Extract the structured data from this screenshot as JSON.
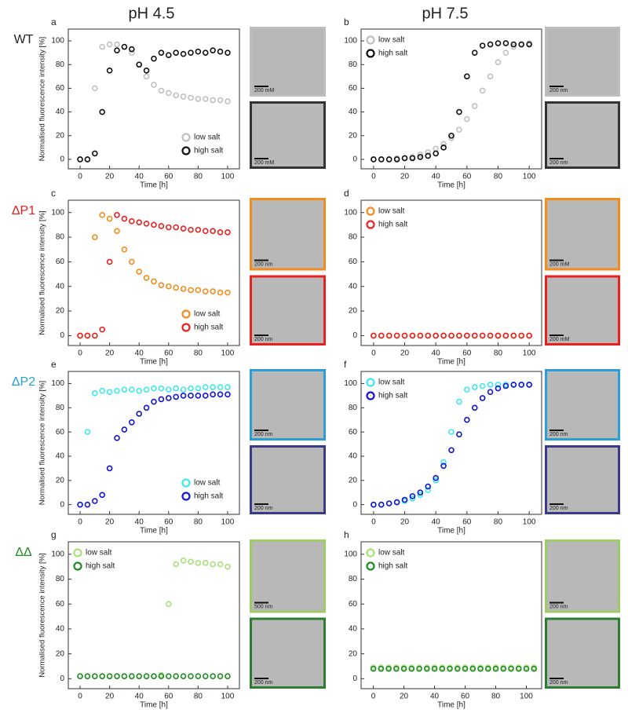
{
  "columns": [
    "pH 4.5",
    "pH 7.5"
  ],
  "rows": [
    {
      "text": "WT",
      "color": "#222222"
    },
    {
      "text": "ΔP1",
      "color": "#e8211f"
    },
    {
      "text": "ΔP2",
      "color": "#2a9fd6"
    },
    {
      "text": "ΔΔ",
      "color": "#1e8c24"
    }
  ],
  "micrographs": [
    [
      {
        "label": "200 mM",
        "border": "#bdbdbd"
      },
      {
        "label": "200 mM",
        "border": "#333333"
      },
      {
        "label": "200 nm",
        "border": "#bdbdbd"
      },
      {
        "label": "200 nm",
        "border": "#333333"
      }
    ],
    [
      {
        "label": "200 nm",
        "border": "#f28c1c"
      },
      {
        "label": "200 nm",
        "border": "#e8211f"
      },
      {
        "label": "200 mM",
        "border": "#f28c1c"
      },
      {
        "label": "200 mM",
        "border": "#e8211f"
      }
    ],
    [
      {
        "label": "200 nm",
        "border": "#2a9fd6"
      },
      {
        "label": "200 nm",
        "border": "#3a3a8c"
      },
      {
        "label": "200 nm",
        "border": "#2a9fd6"
      },
      {
        "label": "200 nm",
        "border": "#3a3a8c"
      }
    ],
    [
      {
        "label": "500 nm",
        "border": "#9ccc65"
      },
      {
        "label": "200 nm",
        "border": "#2e7d32"
      },
      {
        "label": "200 nm",
        "border": "#9ccc65"
      },
      {
        "label": "200 nm",
        "border": "#2e7d32"
      }
    ]
  ],
  "chart_data": [
    {
      "type": "scatter",
      "panel": "a",
      "xlabel": "Time [h]",
      "ylabel": "Normalised fluorescence intensity [%]",
      "legend": "lower right",
      "xlim": [
        -8,
        108
      ],
      "ylim": [
        -8,
        110
      ],
      "xticks": [
        0,
        20,
        40,
        60,
        80,
        100
      ],
      "yticks": [
        0,
        20,
        40,
        60,
        80,
        100
      ],
      "x": [
        0,
        5,
        10,
        15,
        20,
        25,
        30,
        35,
        40,
        45,
        50,
        55,
        60,
        65,
        70,
        75,
        80,
        85,
        90,
        95,
        100
      ],
      "series": [
        {
          "name": "low salt",
          "color": "#c0c0c0",
          "values": [
            0,
            0,
            60,
            95,
            97,
            97,
            95,
            90,
            80,
            70,
            63,
            58,
            56,
            54,
            53,
            52,
            51,
            51,
            50,
            50,
            49
          ]
        },
        {
          "name": "high salt",
          "color": "#111111",
          "values": [
            0,
            0,
            5,
            40,
            75,
            92,
            95,
            93,
            80,
            75,
            85,
            90,
            88,
            90,
            89,
            90,
            91,
            90,
            92,
            91,
            90
          ]
        }
      ]
    },
    {
      "type": "scatter",
      "panel": "b",
      "xlabel": "Time [h]",
      "legend": "upper left",
      "xlim": [
        -8,
        108
      ],
      "ylim": [
        -8,
        110
      ],
      "xticks": [
        0,
        20,
        40,
        60,
        80,
        100
      ],
      "yticks": [
        0,
        20,
        40,
        60,
        80,
        100
      ],
      "x": [
        0,
        5,
        10,
        15,
        20,
        25,
        30,
        35,
        40,
        45,
        50,
        55,
        60,
        65,
        70,
        75,
        80,
        85,
        90,
        95,
        100
      ],
      "series": [
        {
          "name": "low salt",
          "color": "#c0c0c0",
          "values": [
            0,
            0,
            0,
            1,
            1,
            2,
            4,
            6,
            9,
            13,
            18,
            25,
            34,
            45,
            58,
            70,
            82,
            90,
            95,
            97,
            98
          ]
        },
        {
          "name": "high salt",
          "color": "#111111",
          "values": [
            0,
            0,
            0,
            0,
            1,
            1,
            2,
            3,
            5,
            10,
            20,
            40,
            70,
            90,
            96,
            97,
            98,
            98,
            97,
            97,
            97
          ]
        }
      ]
    },
    {
      "type": "scatter",
      "panel": "c",
      "xlabel": "Time [h]",
      "ylabel": "Normalised fluorescence intensity [%]",
      "legend": "lower right",
      "xlim": [
        -8,
        108
      ],
      "ylim": [
        -8,
        110
      ],
      "xticks": [
        0,
        20,
        40,
        60,
        80,
        100
      ],
      "yticks": [
        0,
        20,
        40,
        60,
        80,
        100
      ],
      "x": [
        0,
        5,
        10,
        15,
        20,
        25,
        30,
        35,
        40,
        45,
        50,
        55,
        60,
        65,
        70,
        75,
        80,
        85,
        90,
        95,
        100
      ],
      "series": [
        {
          "name": "low salt",
          "color": "#f28c1c",
          "values": [
            0,
            0,
            80,
            98,
            95,
            85,
            70,
            60,
            52,
            47,
            44,
            41,
            40,
            39,
            38,
            37,
            37,
            36,
            36,
            35,
            35
          ]
        },
        {
          "name": "high salt",
          "color": "#e8211f",
          "values": [
            0,
            0,
            0,
            5,
            60,
            98,
            95,
            93,
            92,
            91,
            90,
            89,
            88,
            88,
            87,
            86,
            86,
            85,
            85,
            84,
            84
          ]
        }
      ]
    },
    {
      "type": "scatter",
      "panel": "d",
      "xlabel": "Time [h]",
      "legend": "upper left",
      "xlim": [
        -8,
        108
      ],
      "ylim": [
        -8,
        110
      ],
      "xticks": [
        0,
        20,
        40,
        60,
        80,
        100
      ],
      "yticks": [
        0,
        20,
        40,
        60,
        80,
        100
      ],
      "x": [
        0,
        5,
        10,
        15,
        20,
        25,
        30,
        35,
        40,
        45,
        50,
        55,
        60,
        65,
        70,
        75,
        80,
        85,
        90,
        95,
        100
      ],
      "series": [
        {
          "name": "low salt",
          "color": "#f28c1c",
          "values": [
            0,
            0,
            0,
            0,
            0,
            0,
            0,
            0,
            0,
            0,
            0,
            0,
            0,
            0,
            0,
            0,
            0,
            0,
            0,
            0,
            0
          ]
        },
        {
          "name": "high salt",
          "color": "#e8211f",
          "values": [
            0,
            0,
            0,
            0,
            0,
            0,
            0,
            0,
            0,
            0,
            0,
            0,
            0,
            0,
            0,
            0,
            0,
            0,
            0,
            0,
            0
          ]
        }
      ]
    },
    {
      "type": "scatter",
      "panel": "e",
      "xlabel": "Time [h]",
      "ylabel": "Normalised fluorescence intensity [%]",
      "legend": "lower right",
      "xlim": [
        -8,
        108
      ],
      "ylim": [
        -8,
        110
      ],
      "xticks": [
        0,
        20,
        40,
        60,
        80,
        100
      ],
      "yticks": [
        0,
        20,
        40,
        60,
        80,
        100
      ],
      "x": [
        0,
        5,
        10,
        15,
        20,
        25,
        30,
        35,
        40,
        45,
        50,
        55,
        60,
        65,
        70,
        75,
        80,
        85,
        90,
        95,
        100
      ],
      "series": [
        {
          "name": "low salt",
          "color": "#3ee8ef",
          "values": [
            0,
            60,
            92,
            94,
            93,
            94,
            95,
            95,
            94,
            95,
            96,
            96,
            95,
            96,
            95,
            96,
            96,
            97,
            97,
            97,
            97
          ]
        },
        {
          "name": "high salt",
          "color": "#1414d4",
          "values": [
            0,
            0,
            3,
            8,
            30,
            55,
            62,
            68,
            75,
            80,
            85,
            87,
            88,
            89,
            90,
            90,
            90,
            90,
            91,
            91,
            91
          ]
        }
      ]
    },
    {
      "type": "scatter",
      "panel": "f",
      "xlabel": "Time [h]",
      "legend": "upper left",
      "xlim": [
        -8,
        108
      ],
      "ylim": [
        -8,
        110
      ],
      "xticks": [
        0,
        20,
        40,
        60,
        80,
        100
      ],
      "yticks": [
        0,
        20,
        40,
        60,
        80,
        100
      ],
      "x": [
        0,
        5,
        10,
        15,
        20,
        25,
        30,
        35,
        40,
        45,
        50,
        55,
        60,
        65,
        70,
        75,
        80,
        85,
        90,
        95,
        100
      ],
      "series": [
        {
          "name": "low salt",
          "color": "#3ee8ef",
          "values": [
            0,
            0,
            1,
            2,
            3,
            5,
            8,
            12,
            20,
            35,
            60,
            85,
            95,
            97,
            98,
            99,
            99,
            99,
            99,
            99,
            99
          ]
        },
        {
          "name": "high salt",
          "color": "#1414d4",
          "values": [
            0,
            0,
            1,
            2,
            4,
            7,
            10,
            15,
            22,
            32,
            45,
            58,
            70,
            80,
            88,
            93,
            96,
            98,
            99,
            99,
            99
          ]
        }
      ]
    },
    {
      "type": "scatter",
      "panel": "g",
      "xlabel": "Time [h]",
      "ylabel": "Normalised fluorescence intensity [%]",
      "legend": "upper left",
      "xlim": [
        -8,
        108
      ],
      "ylim": [
        -8,
        110
      ],
      "xticks": [
        0,
        20,
        40,
        60,
        80,
        100
      ],
      "yticks": [
        0,
        20,
        40,
        60,
        80,
        100
      ],
      "x": [
        0,
        5,
        10,
        15,
        20,
        25,
        30,
        35,
        40,
        45,
        50,
        55,
        60,
        65,
        70,
        75,
        80,
        85,
        90,
        95,
        100
      ],
      "series": [
        {
          "name": "low salt",
          "color": "#a9e07b",
          "values": [
            2,
            2,
            2,
            2,
            2,
            2,
            2,
            2,
            2,
            2,
            2,
            3,
            60,
            92,
            95,
            94,
            93,
            93,
            92,
            92,
            90
          ]
        },
        {
          "name": "high salt",
          "color": "#1e8c24",
          "values": [
            2,
            2,
            2,
            2,
            2,
            2,
            2,
            2,
            2,
            2,
            2,
            2,
            2,
            2,
            2,
            2,
            2,
            2,
            2,
            2,
            2
          ]
        }
      ]
    },
    {
      "type": "scatter",
      "panel": "h",
      "xlabel": "Time [h]",
      "legend": "upper left",
      "xlim": [
        -8,
        110
      ],
      "ylim": [
        -8,
        110
      ],
      "xticks": [
        0,
        20,
        40,
        60,
        80,
        100
      ],
      "yticks": [
        0,
        20,
        40,
        60,
        80,
        100
      ],
      "x": [
        0,
        5,
        10,
        15,
        20,
        25,
        30,
        35,
        40,
        45,
        50,
        55,
        60,
        65,
        70,
        75,
        80,
        85,
        90,
        95,
        100,
        105
      ],
      "series": [
        {
          "name": "low salt",
          "color": "#a9e07b",
          "values": [
            9,
            9,
            9,
            9,
            9,
            9,
            9,
            9,
            9,
            9,
            9,
            9,
            9,
            9,
            9,
            9,
            9,
            9,
            9,
            9,
            9,
            9
          ]
        },
        {
          "name": "high salt",
          "color": "#1e8c24",
          "values": [
            8,
            8,
            8,
            8,
            8,
            8,
            8,
            8,
            8,
            8,
            8,
            8,
            8,
            8,
            8,
            8,
            8,
            8,
            8,
            8,
            8,
            8
          ]
        }
      ]
    }
  ]
}
